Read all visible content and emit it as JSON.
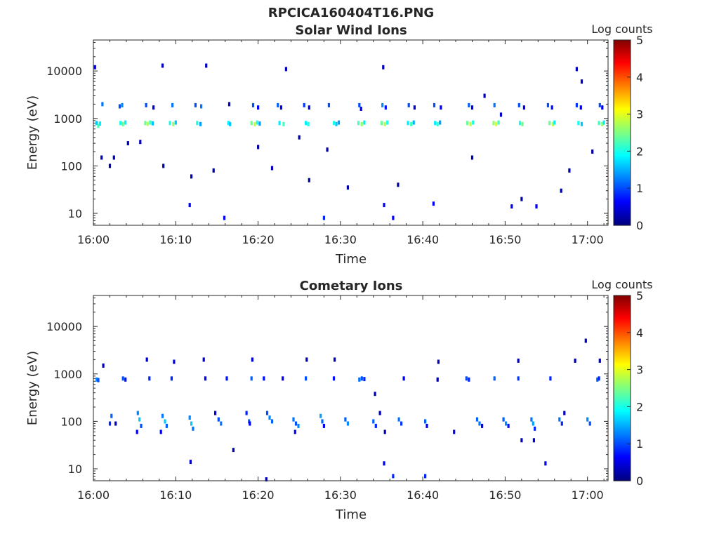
{
  "figure_title": "RPCICA160404T16.PNG",
  "colormap": [
    "#00007f",
    "#0000ff",
    "#007fff",
    "#00ffff",
    "#7fff7f",
    "#ffff00",
    "#ff7f00",
    "#ff0000",
    "#7f0000"
  ],
  "axes_color": "#262626",
  "chart_data": [
    {
      "type": "heatmap",
      "title": "Solar Wind Ions",
      "xlabel": "Time",
      "ylabel": "Energy (eV)",
      "x_unit": "minutes past 16:00",
      "xlim": [
        0,
        62.5
      ],
      "ylim": [
        5.6,
        45000
      ],
      "yscale": "log",
      "xticks": [
        {
          "label": "16:00",
          "value": 0
        },
        {
          "label": "16:10",
          "value": 10
        },
        {
          "label": "16:20",
          "value": 20
        },
        {
          "label": "16:30",
          "value": 30
        },
        {
          "label": "16:40",
          "value": 40
        },
        {
          "label": "16:50",
          "value": 50
        },
        {
          "label": "17:00",
          "value": 60
        }
      ],
      "yticks": [
        {
          "label": "10",
          "value": 10
        },
        {
          "label": "100",
          "value": 100
        },
        {
          "label": "1000",
          "value": 1000
        },
        {
          "label": "10000",
          "value": 10000
        }
      ],
      "colorbar": {
        "title": "Log counts",
        "range": [
          0,
          5
        ],
        "ticks": [
          "0",
          "1",
          "2",
          "3",
          "4",
          "5"
        ]
      },
      "cells": [
        [
          0.4,
          800,
          1.6
        ],
        [
          0.6,
          700,
          2.2
        ],
        [
          0.8,
          780,
          1.8
        ],
        [
          1.1,
          2000,
          1.2
        ],
        [
          0.2,
          12000,
          0.4
        ],
        [
          1.0,
          150,
          0.3
        ],
        [
          2.0,
          100,
          0.2
        ],
        [
          3.3,
          800,
          2.0
        ],
        [
          3.6,
          760,
          2.4
        ],
        [
          3.9,
          820,
          1.8
        ],
        [
          3.2,
          1800,
          1.0
        ],
        [
          3.5,
          1900,
          1.3
        ],
        [
          2.5,
          150,
          0.3
        ],
        [
          4.2,
          300,
          0.3
        ],
        [
          6.3,
          800,
          2.4
        ],
        [
          6.6,
          770,
          2.8
        ],
        [
          6.9,
          820,
          2.2
        ],
        [
          7.2,
          790,
          1.6
        ],
        [
          6.4,
          1900,
          1.0
        ],
        [
          7.3,
          1700,
          0.5
        ],
        [
          5.7,
          320,
          0.3
        ],
        [
          9.3,
          800,
          2.0
        ],
        [
          9.7,
          760,
          2.6
        ],
        [
          10.0,
          820,
          1.6
        ],
        [
          9.6,
          1900,
          1.2
        ],
        [
          8.4,
          13000,
          0.3
        ],
        [
          8.5,
          100,
          0.2
        ],
        [
          12.6,
          800,
          2.0
        ],
        [
          13.0,
          760,
          1.4
        ],
        [
          12.4,
          1900,
          1.0
        ],
        [
          13.1,
          1800,
          1.2
        ],
        [
          11.9,
          60,
          0.3
        ],
        [
          11.7,
          15,
          0.6
        ],
        [
          13.7,
          13000,
          0.3
        ],
        [
          16.4,
          800,
          1.8
        ],
        [
          16.6,
          760,
          1.6
        ],
        [
          15.9,
          8,
          0.6
        ],
        [
          16.5,
          2000,
          0.3
        ],
        [
          14.6,
          80,
          0.2
        ],
        [
          19.2,
          800,
          2.4
        ],
        [
          19.6,
          760,
          2.8
        ],
        [
          19.9,
          820,
          2.0
        ],
        [
          20.2,
          780,
          1.4
        ],
        [
          19.4,
          1900,
          1.0
        ],
        [
          20.0,
          1700,
          0.6
        ],
        [
          20.0,
          250,
          0.2
        ],
        [
          22.6,
          800,
          1.8
        ],
        [
          23.1,
          760,
          2.2
        ],
        [
          22.4,
          1900,
          1.1
        ],
        [
          22.8,
          1700,
          0.6
        ],
        [
          23.4,
          11000,
          0.3
        ],
        [
          21.7,
          90,
          0.3
        ],
        [
          25.8,
          800,
          1.8
        ],
        [
          26.1,
          760,
          2.0
        ],
        [
          25.6,
          1900,
          0.9
        ],
        [
          26.2,
          1700,
          0.5
        ],
        [
          26.2,
          50,
          0.2
        ],
        [
          25.0,
          400,
          0.2
        ],
        [
          29.2,
          800,
          2.0
        ],
        [
          29.5,
          760,
          1.6
        ],
        [
          29.8,
          820,
          1.4
        ],
        [
          28.6,
          1900,
          1.0
        ],
        [
          28.0,
          8,
          0.8
        ],
        [
          28.4,
          220,
          0.2
        ],
        [
          32.2,
          800,
          2.2
        ],
        [
          32.6,
          760,
          2.6
        ],
        [
          32.9,
          820,
          1.8
        ],
        [
          32.3,
          1900,
          1.0
        ],
        [
          32.5,
          1600,
          0.6
        ],
        [
          30.9,
          35,
          0.2
        ],
        [
          35.0,
          800,
          2.4
        ],
        [
          35.4,
          760,
          2.8
        ],
        [
          35.7,
          820,
          2.0
        ],
        [
          35.1,
          1900,
          1.3
        ],
        [
          35.5,
          1700,
          0.7
        ],
        [
          35.2,
          12000,
          0.3
        ],
        [
          35.3,
          15,
          0.6
        ],
        [
          36.4,
          8,
          0.6
        ],
        [
          38.2,
          800,
          1.8
        ],
        [
          38.6,
          760,
          2.2
        ],
        [
          38.9,
          820,
          1.5
        ],
        [
          38.3,
          1900,
          1.0
        ],
        [
          39.0,
          1700,
          0.4
        ],
        [
          37.0,
          40,
          0.2
        ],
        [
          41.5,
          800,
          1.8
        ],
        [
          41.8,
          760,
          2.1
        ],
        [
          42.1,
          820,
          1.4
        ],
        [
          41.4,
          1900,
          1.0
        ],
        [
          42.2,
          1700,
          0.5
        ],
        [
          41.3,
          16,
          0.6
        ],
        [
          45.4,
          800,
          2.4
        ],
        [
          45.8,
          760,
          2.8
        ],
        [
          46.1,
          820,
          2.0
        ],
        [
          45.6,
          1900,
          1.1
        ],
        [
          46.0,
          1700,
          0.6
        ],
        [
          46.0,
          150,
          0.3
        ],
        [
          48.6,
          800,
          2.6
        ],
        [
          48.9,
          760,
          3.0
        ],
        [
          49.2,
          820,
          2.2
        ],
        [
          48.7,
          1900,
          1.2
        ],
        [
          49.5,
          1200,
          0.4
        ],
        [
          47.5,
          3000,
          0.3
        ],
        [
          51.8,
          800,
          2.0
        ],
        [
          52.1,
          760,
          2.4
        ],
        [
          51.7,
          1900,
          1.0
        ],
        [
          52.3,
          1700,
          0.6
        ],
        [
          50.8,
          14,
          0.6
        ],
        [
          53.8,
          14,
          0.6
        ],
        [
          52.0,
          20,
          0.2
        ],
        [
          55.4,
          800,
          2.4
        ],
        [
          55.8,
          760,
          2.8
        ],
        [
          56.0,
          820,
          1.8
        ],
        [
          55.2,
          1900,
          1.0
        ],
        [
          55.7,
          1700,
          0.7
        ],
        [
          56.8,
          30,
          0.2
        ],
        [
          58.9,
          800,
          2.0
        ],
        [
          59.3,
          760,
          1.6
        ],
        [
          58.7,
          1900,
          0.9
        ],
        [
          59.2,
          1700,
          0.5
        ],
        [
          58.7,
          11000,
          0.3
        ],
        [
          57.8,
          80,
          0.2
        ],
        [
          61.4,
          800,
          2.2
        ],
        [
          61.8,
          760,
          2.6
        ],
        [
          62.0,
          820,
          1.8
        ],
        [
          61.5,
          1900,
          1.0
        ],
        [
          61.8,
          1700,
          0.5
        ],
        [
          59.3,
          6000,
          0.3
        ],
        [
          60.6,
          200,
          0.2
        ]
      ]
    },
    {
      "type": "heatmap",
      "title": "Cometary Ions",
      "xlabel": "Time",
      "ylabel": "Energy (eV)",
      "x_unit": "minutes past 16:00",
      "xlim": [
        0,
        62.5
      ],
      "ylim": [
        5.6,
        45000
      ],
      "yscale": "log",
      "xticks": [
        {
          "label": "16:00",
          "value": 0
        },
        {
          "label": "16:10",
          "value": 10
        },
        {
          "label": "16:20",
          "value": 20
        },
        {
          "label": "16:30",
          "value": 30
        },
        {
          "label": "16:40",
          "value": 40
        },
        {
          "label": "16:50",
          "value": 50
        },
        {
          "label": "17:00",
          "value": 60
        }
      ],
      "yticks": [
        {
          "label": "10",
          "value": 10
        },
        {
          "label": "100",
          "value": 100
        },
        {
          "label": "1000",
          "value": 1000
        },
        {
          "label": "10000",
          "value": 10000
        }
      ],
      "colorbar": {
        "title": "Log counts",
        "range": [
          0,
          5
        ],
        "ticks": [
          "0",
          "1",
          "2",
          "3",
          "4",
          "5"
        ]
      },
      "cells": [
        [
          0.4,
          760,
          1.3
        ],
        [
          0.6,
          740,
          1.0
        ],
        [
          1.2,
          1500,
          0.3
        ],
        [
          2.0,
          90,
          0.8
        ],
        [
          2.2,
          130,
          1.1
        ],
        [
          2.7,
          90,
          0.3
        ],
        [
          3.6,
          800,
          1.0
        ],
        [
          3.9,
          760,
          0.7
        ],
        [
          5.4,
          150,
          1.3
        ],
        [
          5.6,
          110,
          1.6
        ],
        [
          5.8,
          80,
          1.0
        ],
        [
          5.3,
          60,
          0.6
        ],
        [
          6.5,
          2000,
          0.4
        ],
        [
          6.8,
          800,
          0.8
        ],
        [
          8.4,
          130,
          1.2
        ],
        [
          8.7,
          100,
          1.6
        ],
        [
          8.9,
          80,
          1.1
        ],
        [
          8.2,
          60,
          0.6
        ],
        [
          9.5,
          800,
          0.8
        ],
        [
          9.8,
          1800,
          0.4
        ],
        [
          11.7,
          120,
          1.3
        ],
        [
          11.9,
          90,
          1.6
        ],
        [
          12.1,
          70,
          1.2
        ],
        [
          11.8,
          14,
          0.4
        ],
        [
          13.4,
          2000,
          0.4
        ],
        [
          13.6,
          800,
          0.6
        ],
        [
          14.8,
          150,
          0.5
        ],
        [
          15.2,
          110,
          1.0
        ],
        [
          15.5,
          90,
          1.2
        ],
        [
          16.2,
          800,
          0.7
        ],
        [
          17.0,
          25,
          0.3
        ],
        [
          18.6,
          150,
          0.8
        ],
        [
          18.9,
          100,
          1.1
        ],
        [
          19.2,
          800,
          1.1
        ],
        [
          19.3,
          2000,
          0.4
        ],
        [
          19.0,
          90,
          0.6
        ],
        [
          21.1,
          150,
          1.0
        ],
        [
          21.4,
          120,
          1.3
        ],
        [
          21.7,
          100,
          1.1
        ],
        [
          20.7,
          800,
          0.7
        ],
        [
          21.0,
          6,
          0.3
        ],
        [
          23.0,
          800,
          0.6
        ],
        [
          24.3,
          110,
          1.2
        ],
        [
          24.6,
          90,
          1.0
        ],
        [
          24.9,
          80,
          1.3
        ],
        [
          24.5,
          60,
          0.6
        ],
        [
          25.8,
          800,
          1.0
        ],
        [
          25.9,
          2000,
          0.3
        ],
        [
          27.6,
          130,
          1.4
        ],
        [
          27.8,
          100,
          1.1
        ],
        [
          28.0,
          80,
          0.6
        ],
        [
          29.2,
          800,
          0.7
        ],
        [
          29.3,
          2000,
          0.3
        ],
        [
          30.6,
          110,
          1.1
        ],
        [
          30.9,
          90,
          1.3
        ],
        [
          32.3,
          760,
          1.2
        ],
        [
          32.6,
          800,
          1.0
        ],
        [
          32.9,
          780,
          0.8
        ],
        [
          34.0,
          100,
          1.1
        ],
        [
          34.3,
          80,
          0.8
        ],
        [
          34.8,
          150,
          0.3
        ],
        [
          34.2,
          380,
          0.3
        ],
        [
          35.3,
          13,
          0.6
        ],
        [
          35.4,
          60,
          0.3
        ],
        [
          36.4,
          7,
          0.8
        ],
        [
          37.1,
          110,
          1.2
        ],
        [
          37.4,
          90,
          0.9
        ],
        [
          37.7,
          800,
          0.6
        ],
        [
          40.3,
          100,
          1.1
        ],
        [
          40.5,
          80,
          0.6
        ],
        [
          40.3,
          7,
          0.8
        ],
        [
          41.9,
          1800,
          0.3
        ],
        [
          41.8,
          760,
          0.2
        ],
        [
          43.8,
          60,
          0.5
        ],
        [
          45.3,
          800,
          1.0
        ],
        [
          45.6,
          760,
          0.8
        ],
        [
          46.6,
          110,
          1.1
        ],
        [
          46.9,
          90,
          1.2
        ],
        [
          47.2,
          80,
          0.6
        ],
        [
          48.7,
          800,
          1.1
        ],
        [
          49.8,
          110,
          1.1
        ],
        [
          50.1,
          90,
          1.3
        ],
        [
          50.4,
          80,
          0.7
        ],
        [
          51.6,
          800,
          0.9
        ],
        [
          51.6,
          1900,
          0.4
        ],
        [
          52.0,
          40,
          0.3
        ],
        [
          53.2,
          110,
          1.2
        ],
        [
          53.4,
          90,
          1.4
        ],
        [
          53.6,
          70,
          0.8
        ],
        [
          53.5,
          40,
          0.4
        ],
        [
          54.9,
          13,
          0.6
        ],
        [
          55.5,
          800,
          0.8
        ],
        [
          56.6,
          110,
          1.2
        ],
        [
          56.9,
          90,
          0.8
        ],
        [
          57.2,
          150,
          0.3
        ],
        [
          58.5,
          1900,
          0.3
        ],
        [
          60.0,
          110,
          1.3
        ],
        [
          60.3,
          90,
          1.0
        ],
        [
          59.8,
          5000,
          0.3
        ],
        [
          61.2,
          760,
          1.1
        ],
        [
          61.4,
          800,
          0.8
        ],
        [
          61.5,
          1900,
          0.4
        ]
      ]
    }
  ]
}
